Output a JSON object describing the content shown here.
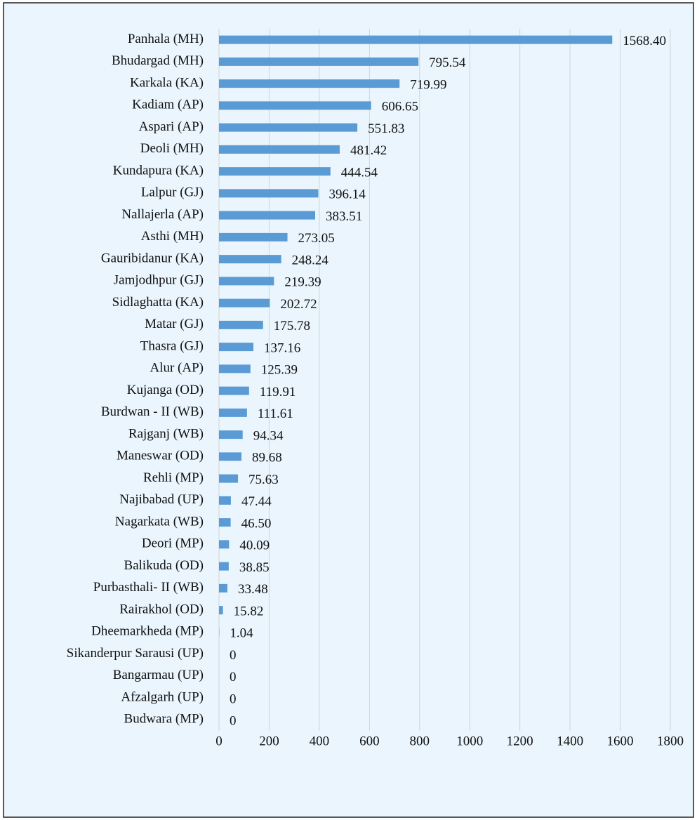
{
  "chart_data": {
    "type": "bar",
    "orientation": "horizontal",
    "categories": [
      "Panhala (MH)",
      "Bhudargad (MH)",
      "Karkala (KA)",
      "Kadiam (AP)",
      "Aspari (AP)",
      "Deoli (MH)",
      "Kundapura (KA)",
      "Lalpur (GJ)",
      "Nallajerla (AP)",
      "Asthi (MH)",
      "Gauribidanur (KA)",
      "Jamjodhpur (GJ)",
      "Sidlaghatta (KA)",
      "Matar (GJ)",
      "Thasra (GJ)",
      "Alur (AP)",
      "Kujanga (OD)",
      "Burdwan - II (WB)",
      "Rajganj (WB)",
      "Maneswar (OD)",
      "Rehli (MP)",
      "Najibabad (UP)",
      "Nagarkata (WB)",
      "Deori (MP)",
      "Balikuda (OD)",
      "Purbasthali- II (WB)",
      "Rairakhol (OD)",
      "Dheemarkheda (MP)",
      "Sikanderpur Sarausi (UP)",
      "Bangarmau (UP)",
      "Afzalgarh (UP)",
      "Budwara (MP)"
    ],
    "values": [
      1568.4,
      795.54,
      719.99,
      606.65,
      551.83,
      481.42,
      444.54,
      396.14,
      383.51,
      273.05,
      248.24,
      219.39,
      202.72,
      175.78,
      137.16,
      125.39,
      119.91,
      111.61,
      94.34,
      89.68,
      75.63,
      47.44,
      46.5,
      40.09,
      38.85,
      33.48,
      15.82,
      1.04,
      0,
      0,
      0,
      0
    ],
    "value_labels": [
      "1568.40",
      "795.54",
      "719.99",
      "606.65",
      "551.83",
      "481.42",
      "444.54",
      "396.14",
      "383.51",
      "273.05",
      "248.24",
      "219.39",
      "202.72",
      "175.78",
      "137.16",
      "125.39",
      "119.91",
      "111.61",
      "94.34",
      "89.68",
      "75.63",
      "47.44",
      "46.50",
      "40.09",
      "38.85",
      "33.48",
      "15.82",
      "1.04",
      "0",
      "0",
      "0",
      "0"
    ],
    "color": "#5b9bd5",
    "xlim": [
      0,
      1800
    ],
    "xticks": [
      0,
      200,
      400,
      600,
      800,
      1000,
      1200,
      1400,
      1600,
      1800
    ],
    "grid": true
  }
}
